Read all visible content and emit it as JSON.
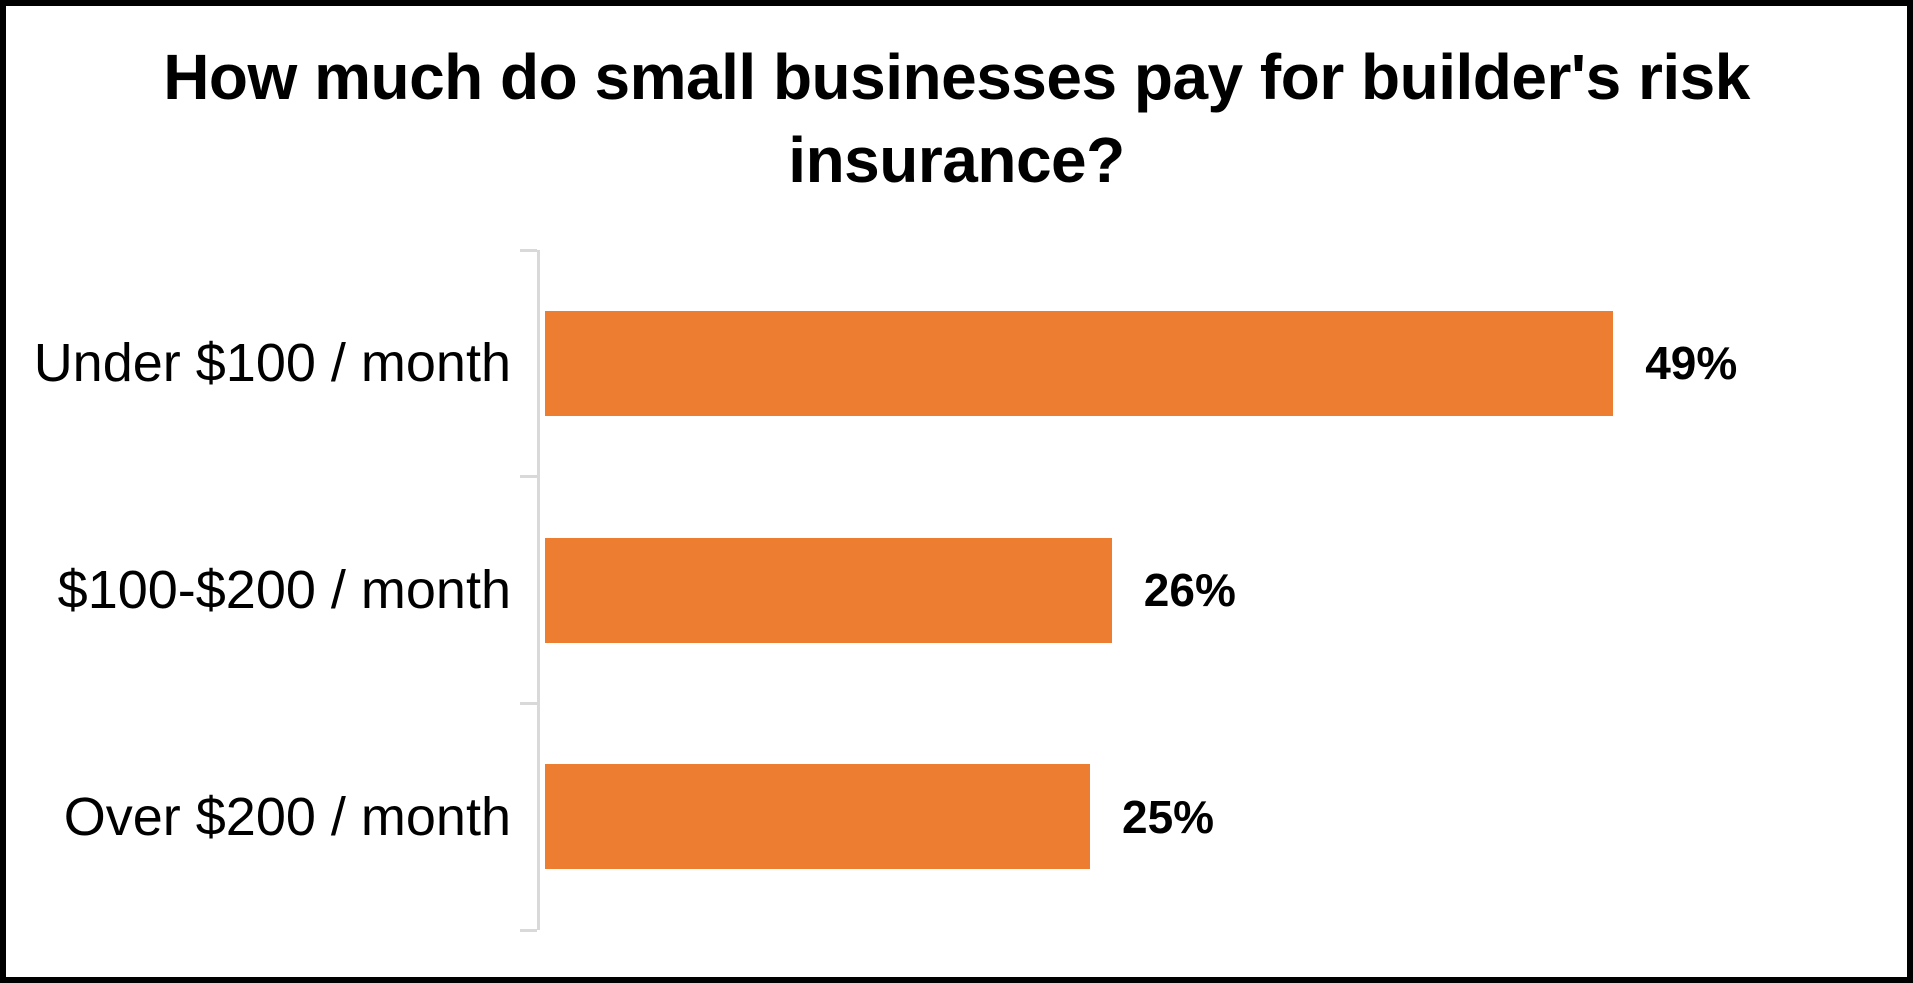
{
  "frame": {
    "border_color": "#000000",
    "background_color": "#FFFFFF"
  },
  "title_lines": [
    "How much do small businesses pay for builder's risk",
    "insurance?"
  ],
  "chart_data": {
    "type": "bar",
    "orientation": "horizontal",
    "title": "How much do small businesses pay for builder's risk insurance?",
    "categories": [
      "Under $100 / month",
      "$100-$200 / month",
      "Over $200 / month"
    ],
    "values": [
      49,
      26,
      25
    ],
    "value_labels": [
      "49%",
      "26%",
      "25%"
    ],
    "xlabel": "",
    "ylabel": "",
    "xlim": [
      0,
      60
    ],
    "grid": false,
    "legend": false,
    "bar_color": "#ED7D31",
    "axis_color": "#D9D9D9",
    "text_color": "#000000"
  }
}
